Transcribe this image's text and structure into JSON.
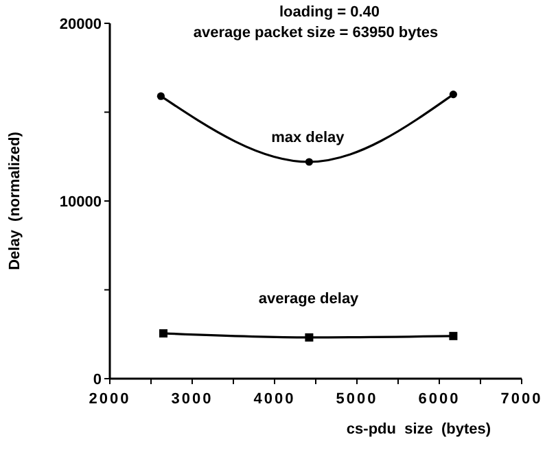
{
  "chart_data": {
    "type": "line",
    "title": "loading = 0.40",
    "subtitle": "average packet size = 63950 bytes",
    "xlabel": "cs-pdu  size  (bytes)",
    "ylabel": "Delay  (normalized)",
    "series": [
      {
        "name": "max delay",
        "color": "#000000",
        "x": [
          2620,
          4420,
          6170
        ],
        "values": [
          15900,
          12200,
          16000
        ]
      },
      {
        "name": "average delay",
        "color": "#000000",
        "x": [
          2650,
          4420,
          6170
        ],
        "values": [
          2550,
          2320,
          2400
        ],
        "marker": "square"
      }
    ],
    "xlim": [
      2000,
      7000
    ],
    "xticks": [
      2000,
      {
        "value": 2500,
        "label": null
      },
      3000,
      {
        "value": 3500,
        "label": null
      },
      4000,
      {
        "value": 4500,
        "label": null
      },
      5000,
      {
        "value": 5500,
        "label": null
      },
      6000,
      {
        "value": 6500,
        "label": null
      },
      7000
    ],
    "ylim": [
      0,
      20000
    ],
    "yticks": [
      0,
      {
        "value": 5000,
        "label": null
      },
      10000,
      {
        "value": 15000,
        "label": null
      },
      20000
    ],
    "marker": "circle",
    "line_style": "solid",
    "grid": false
  }
}
